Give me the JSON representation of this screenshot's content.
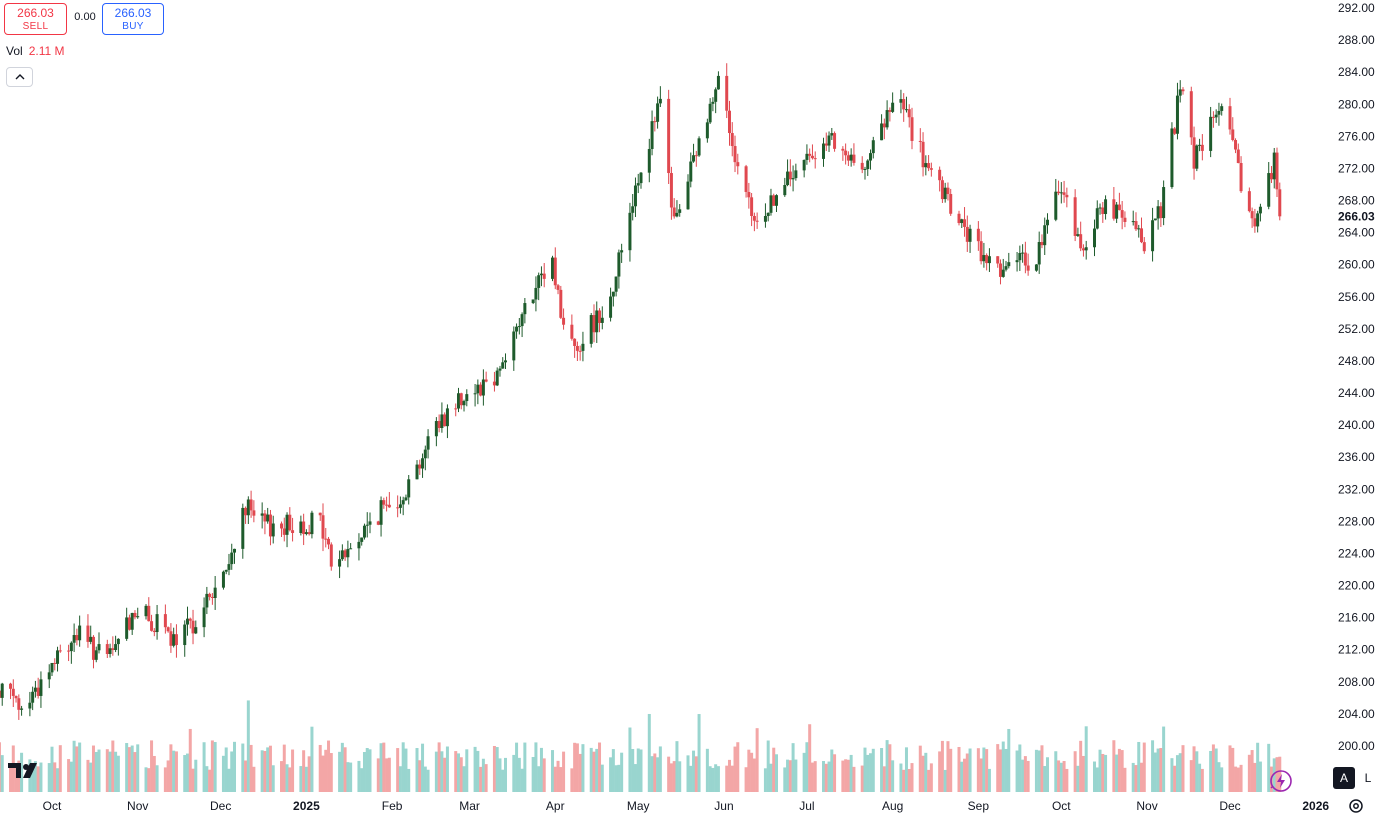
{
  "trade": {
    "sell_price": "266.03",
    "sell_label": "SELL",
    "spread": "0.00",
    "buy_price": "266.03",
    "buy_label": "BUY"
  },
  "volume_legend": {
    "label": "Vol",
    "value": "2.11 M"
  },
  "toolbar": {
    "collapse_icon": "chevron-up-icon",
    "auto_label": "A",
    "log_label": "L"
  },
  "colors": {
    "up": "#1e5b2c",
    "down": "#e0484f",
    "vol_up": "#99d5cf",
    "vol_down": "#f3a6a6",
    "last_price_bg": "#ffffff"
  },
  "chart_data": {
    "type": "candlestick",
    "y_axis": {
      "range": [
        198,
        292
      ],
      "ticks": [
        292,
        288,
        284,
        280,
        276,
        272,
        268,
        264,
        260,
        256,
        252,
        248,
        244,
        240,
        236,
        232,
        228,
        224,
        220,
        216,
        212,
        208,
        204,
        200
      ]
    },
    "last_price": "266.03",
    "x_axis_labels": [
      {
        "label": "Oct",
        "date": "2024-10-01"
      },
      {
        "label": "Nov",
        "date": "2024-11-01"
      },
      {
        "label": "Dec",
        "date": "2024-12-01"
      },
      {
        "label": "2025",
        "date": "2025-01-01"
      },
      {
        "label": "Feb",
        "date": "2025-02-01"
      },
      {
        "label": "Mar",
        "date": "2025-03-01"
      },
      {
        "label": "Apr",
        "date": "2025-04-01"
      },
      {
        "label": "May",
        "date": "2025-05-01"
      },
      {
        "label": "Jun",
        "date": "2025-06-01"
      },
      {
        "label": "Jul",
        "date": "2025-07-01"
      },
      {
        "label": "Aug",
        "date": "2025-08-01"
      },
      {
        "label": "Sep",
        "date": "2025-09-01"
      },
      {
        "label": "Oct",
        "date": "2025-10-01"
      },
      {
        "label": "Nov",
        "date": "2025-11-01"
      },
      {
        "label": "Dec",
        "date": "2025-12-01"
      },
      {
        "label": "2026",
        "date": "2026-01-01"
      }
    ],
    "price_path": [
      [
        "2024-09-09",
        208.5
      ],
      [
        "2024-09-20",
        204.5
      ],
      [
        "2024-10-01",
        210.0
      ],
      [
        "2024-10-10",
        214.0
      ],
      [
        "2024-10-21",
        210.5
      ],
      [
        "2024-10-31",
        217.0
      ],
      [
        "2024-11-08",
        215.0
      ],
      [
        "2024-11-15",
        212.5
      ],
      [
        "2024-11-25",
        217.5
      ],
      [
        "2024-12-04",
        222.0
      ],
      [
        "2024-12-09",
        230.0
      ],
      [
        "2024-12-16",
        227.5
      ],
      [
        "2024-12-26",
        227.5
      ],
      [
        "2025-01-06",
        228.0
      ],
      [
        "2025-01-10",
        223.0
      ],
      [
        "2025-01-17",
        224.5
      ],
      [
        "2025-01-27",
        229.0
      ],
      [
        "2025-02-06",
        232.0
      ],
      [
        "2025-02-17",
        240.0
      ],
      [
        "2025-02-27",
        244.0
      ],
      [
        "2025-03-10",
        246.0
      ],
      [
        "2025-03-20",
        253.5
      ],
      [
        "2025-03-31",
        260.5
      ],
      [
        "2025-04-04",
        252.0
      ],
      [
        "2025-04-09",
        250.0
      ],
      [
        "2025-04-21",
        256.0
      ],
      [
        "2025-04-30",
        270.0
      ],
      [
        "2025-05-09",
        280.0
      ],
      [
        "2025-05-14",
        265.0
      ],
      [
        "2025-05-27",
        279.5
      ],
      [
        "2025-05-30",
        285.0
      ],
      [
        "2025-06-05",
        272.0
      ],
      [
        "2025-06-12",
        265.0
      ],
      [
        "2025-06-23",
        270.0
      ],
      [
        "2025-06-30",
        272.5
      ],
      [
        "2025-07-07",
        276.0
      ],
      [
        "2025-07-18",
        272.0
      ],
      [
        "2025-07-25",
        274.5
      ],
      [
        "2025-07-30",
        278.5
      ],
      [
        "2025-08-04",
        280.5
      ],
      [
        "2025-08-13",
        272.0
      ],
      [
        "2025-08-22",
        267.0
      ],
      [
        "2025-09-02",
        261.0
      ],
      [
        "2025-09-12",
        259.5
      ],
      [
        "2025-09-22",
        261.0
      ],
      [
        "2025-10-01",
        270.0
      ],
      [
        "2025-10-08",
        262.0
      ],
      [
        "2025-10-17",
        268.0
      ],
      [
        "2025-10-24",
        265.0
      ],
      [
        "2025-10-31",
        263.0
      ],
      [
        "2025-11-06",
        267.0
      ],
      [
        "2025-11-13",
        282.0
      ],
      [
        "2025-11-18",
        273.0
      ],
      [
        "2025-11-28",
        280.0
      ],
      [
        "2025-12-05",
        270.0
      ],
      [
        "2025-12-10",
        265.0
      ],
      [
        "2025-12-17",
        273.0
      ],
      [
        "2025-12-19",
        266.03
      ]
    ]
  }
}
